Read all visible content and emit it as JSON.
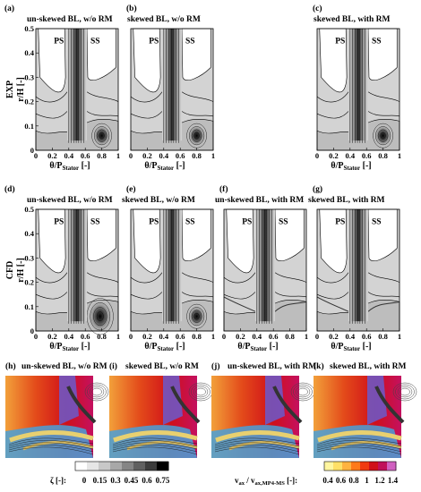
{
  "panels_top": [
    {
      "letter": "(a)",
      "title": "un-skewed BL, w/o RM"
    },
    {
      "letter": "(b)",
      "title": "skewed BL, w/o RM"
    },
    {
      "letter": "(c)",
      "title": "skewed BL, with RM"
    }
  ],
  "panels_mid": [
    {
      "letter": "(d)",
      "title": "un-skewed BL, w/o RM"
    },
    {
      "letter": "(e)",
      "title": "skewed BL, w/o RM"
    },
    {
      "letter": "(f)",
      "title": "un-skewed BL, with RM"
    },
    {
      "letter": "(g)",
      "title": "skewed BL, with RM"
    }
  ],
  "panels_bot": [
    {
      "letter": "(h)",
      "title": "un-skewed BL, w/o RM"
    },
    {
      "letter": "(i)",
      "title": "skewed BL, w/o RM"
    },
    {
      "letter": "(j)",
      "title": "un-skewed BL, with RM"
    },
    {
      "letter": "(k)",
      "title": "skewed BL, with RM"
    }
  ],
  "row_labels": {
    "exp": "EXP",
    "cfd": "CFD"
  },
  "region_labels": {
    "ps": "PS",
    "ss": "SS"
  },
  "axes": {
    "ylabel": "r/H [-]",
    "xlabel_main": "θ/P",
    "xlabel_sub": "Stator",
    "xlabel_unit": " [-]",
    "yticks": [
      "0.5",
      "0.4",
      "0.3",
      "0.2",
      "0.1",
      "0"
    ],
    "xticks": [
      "0",
      "0.2",
      "0.4",
      "0.6",
      "0.8",
      "1"
    ]
  },
  "legend_left": {
    "label": "ζ [-]:",
    "ticks": [
      "0",
      "0.15",
      "0.3",
      "0.45",
      "0.6",
      "0.75"
    ],
    "colors": [
      "#ffffff",
      "#e6e6e6",
      "#c8c8c8",
      "#a8a8a8",
      "#858585",
      "#606060",
      "#3c3c3c",
      "#000000"
    ]
  },
  "legend_right": {
    "label_pre": "v",
    "label_sub1": "ax",
    "label_mid": " / v",
    "label_sub2": "ax,MP4-MS",
    "label_post": " [-]:",
    "ticks": [
      "0.4",
      "0.6",
      "0.8",
      "1",
      "1.2",
      "1.4"
    ],
    "colors": [
      "#fff6a0",
      "#ffe066",
      "#ffb340",
      "#ff7a1a",
      "#f03a10",
      "#d0101a",
      "#c0105a",
      "#d060c0"
    ]
  }
}
